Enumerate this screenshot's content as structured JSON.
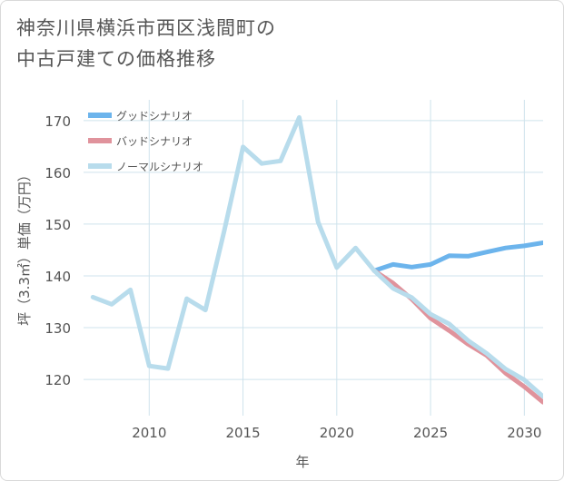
{
  "chart_data": {
    "type": "line",
    "title_lines": [
      "神奈川県横浜市西区浅間町の",
      "中古戸建ての価格推移"
    ],
    "xlabel": "年",
    "ylabel": "坪（3.3㎡）単価（万円）",
    "xlim": [
      2006.5,
      2031
    ],
    "ylim": [
      113,
      174
    ],
    "x_ticks": [
      2010,
      2015,
      2020,
      2025,
      2030
    ],
    "y_ticks": [
      120,
      130,
      140,
      150,
      160,
      170
    ],
    "legend_position": "top-left",
    "series": [
      {
        "name": "グッドシナリオ",
        "color": "#6cb4ec",
        "points": [
          [
            2022,
            141
          ],
          [
            2023,
            142.2
          ],
          [
            2024,
            141.7
          ],
          [
            2025,
            142.2
          ],
          [
            2026,
            143.9
          ],
          [
            2027,
            143.8
          ],
          [
            2028,
            144.6
          ],
          [
            2029,
            145.4
          ],
          [
            2030,
            145.8
          ],
          [
            2031,
            146.4
          ]
        ]
      },
      {
        "name": "バッドシナリオ",
        "color": "#e0939c",
        "points": [
          [
            2022,
            141
          ],
          [
            2023,
            138.6
          ],
          [
            2024,
            135.5
          ],
          [
            2025,
            131.8
          ],
          [
            2026,
            129.4
          ],
          [
            2027,
            126.8
          ],
          [
            2028,
            124.6
          ],
          [
            2029,
            121.2
          ],
          [
            2030,
            118.6
          ],
          [
            2031,
            115.6
          ]
        ]
      },
      {
        "name": "ノーマルシナリオ",
        "color": "#b8dcec",
        "points": [
          [
            2007,
            135.9
          ],
          [
            2008,
            134.5
          ],
          [
            2009,
            137.3
          ],
          [
            2010,
            122.6
          ],
          [
            2011,
            122.1
          ],
          [
            2012,
            135.6
          ],
          [
            2013,
            133.4
          ],
          [
            2014,
            148.7
          ],
          [
            2015,
            164.9
          ],
          [
            2016,
            161.7
          ],
          [
            2017,
            162.2
          ],
          [
            2018,
            170.6
          ],
          [
            2019,
            150.4
          ],
          [
            2020,
            141.6
          ],
          [
            2021,
            145.4
          ],
          [
            2022,
            141
          ],
          [
            2023,
            137.6
          ],
          [
            2024,
            135.8
          ],
          [
            2025,
            132.6
          ],
          [
            2026,
            130.7
          ],
          [
            2027,
            127.5
          ],
          [
            2028,
            125
          ],
          [
            2029,
            122
          ],
          [
            2030,
            119.9
          ],
          [
            2031,
            116.7
          ]
        ]
      }
    ]
  }
}
